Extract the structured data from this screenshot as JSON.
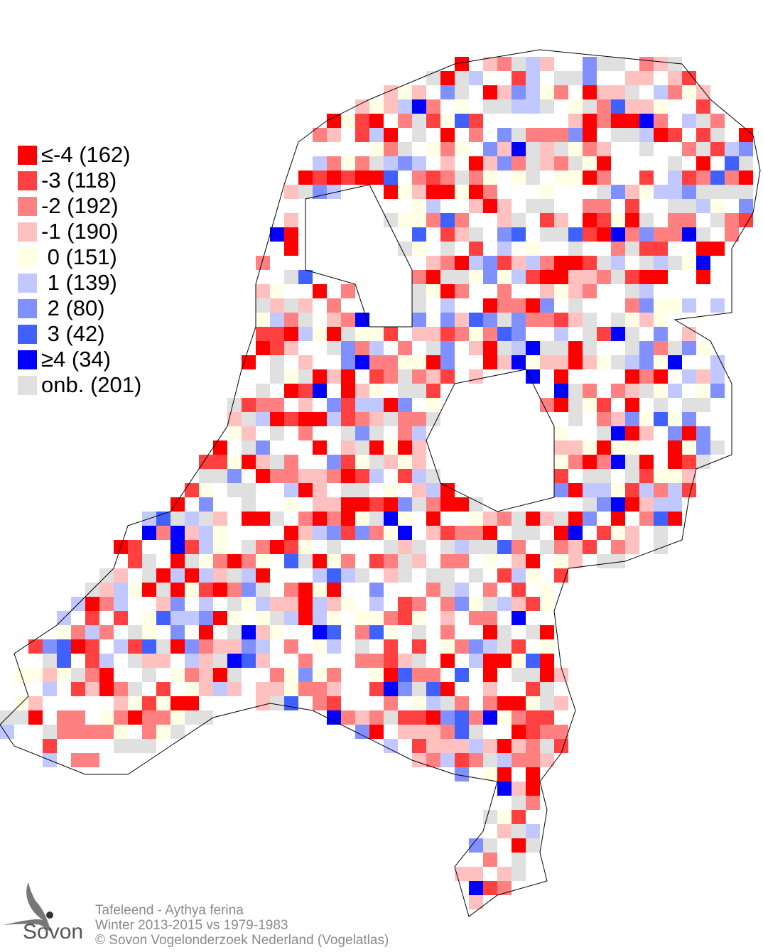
{
  "legend": [
    {
      "label": "≤-4 (162)",
      "color": "#ff0000"
    },
    {
      "label": "-3 (118)",
      "color": "#ff4040"
    },
    {
      "label": "-2 (192)",
      "color": "#ff8080"
    },
    {
      "label": "-1 (190)",
      "color": "#ffc0c0"
    },
    {
      "label": " 0 (151)",
      "color": "#ffffe6"
    },
    {
      "label": " 1 (139)",
      "color": "#c0c8ff"
    },
    {
      "label": " 2 (80)",
      "color": "#8090ff"
    },
    {
      "label": " 3 (42)",
      "color": "#4060ff"
    },
    {
      "label": "≥4 (34)",
      "color": "#0000ff"
    },
    {
      "label": "onb. (201)",
      "color": "#e0e0e0"
    }
  ],
  "caption": {
    "species": "Tafeleend - Aythya ferina",
    "period": "Winter 2013-2015 vs 1979-1983",
    "copyright": "© Sovon Vogelonderzoek Nederland (Vogelatlas)"
  },
  "logo": {
    "text": "Sovon"
  }
}
